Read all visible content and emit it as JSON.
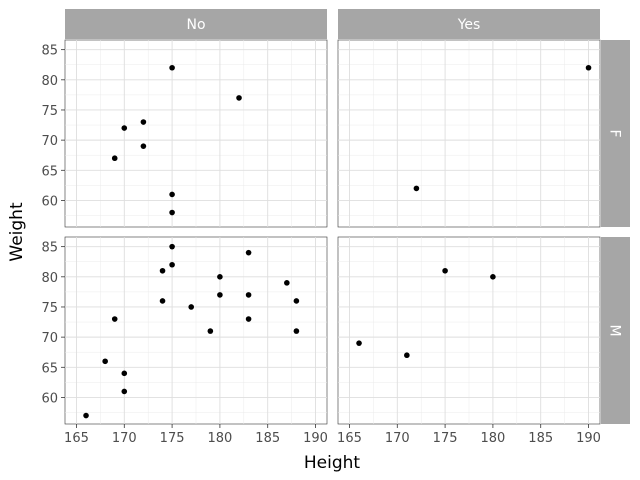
{
  "chart_data": {
    "type": "scatter",
    "xlabel": "Height",
    "ylabel": "Weight",
    "xlim": [
      163.8,
      191.2
    ],
    "ylim": [
      55.6,
      86.6
    ],
    "xticks": [
      165,
      170,
      175,
      180,
      185,
      190
    ],
    "yticks": [
      60,
      65,
      70,
      75,
      80,
      85
    ],
    "col_facets": [
      "No",
      "Yes"
    ],
    "row_facets": [
      "F",
      "M"
    ],
    "grid": true,
    "panels": [
      {
        "col": "No",
        "row": "F",
        "points": [
          [
            175,
            82
          ],
          [
            182,
            77
          ],
          [
            170,
            72
          ],
          [
            172,
            73
          ],
          [
            172,
            69
          ],
          [
            169,
            67
          ],
          [
            175,
            61
          ],
          [
            175,
            58
          ]
        ]
      },
      {
        "col": "Yes",
        "row": "F",
        "points": [
          [
            190,
            82
          ],
          [
            172,
            62
          ]
        ]
      },
      {
        "col": "No",
        "row": "M",
        "points": [
          [
            175,
            85
          ],
          [
            183,
            84
          ],
          [
            175,
            82
          ],
          [
            174,
            81
          ],
          [
            180,
            80
          ],
          [
            187,
            79
          ],
          [
            180,
            77
          ],
          [
            183,
            77
          ],
          [
            174,
            76
          ],
          [
            188,
            76
          ],
          [
            177,
            75
          ],
          [
            169,
            73
          ],
          [
            183,
            73
          ],
          [
            179,
            71
          ],
          [
            188,
            71
          ],
          [
            168,
            66
          ],
          [
            170,
            64
          ],
          [
            170,
            61
          ],
          [
            166,
            57
          ]
        ]
      },
      {
        "col": "Yes",
        "row": "M",
        "points": [
          [
            175,
            81
          ],
          [
            180,
            80
          ],
          [
            166,
            69
          ],
          [
            171,
            67
          ]
        ]
      }
    ]
  }
}
